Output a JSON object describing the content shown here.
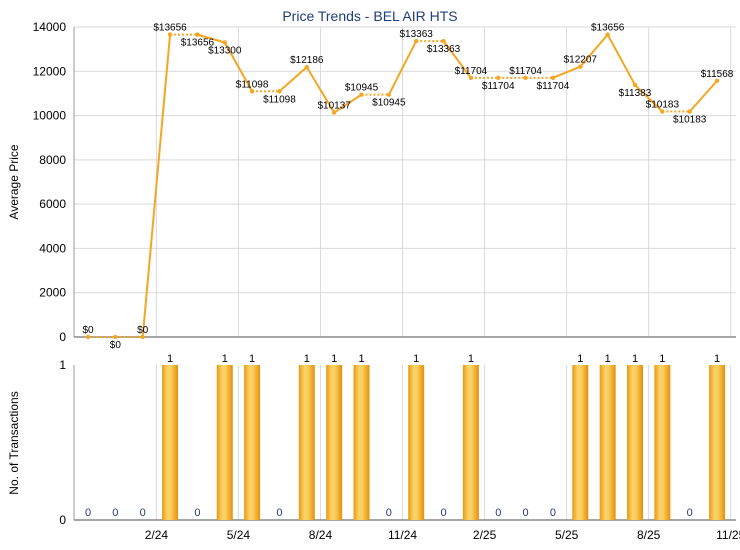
{
  "chart_data": [
    {
      "type": "line",
      "title": "Price Trends - BEL AIR HTS",
      "ylabel": "Average Price",
      "ylim": [
        0,
        14000
      ],
      "yticks": [
        "0",
        "2000",
        "4000",
        "6000",
        "8000",
        "10000",
        "12000",
        "14000"
      ],
      "grid": true,
      "color": "#f5a623",
      "points": [
        {
          "y": 0,
          "label": "$0",
          "pos": "above"
        },
        {
          "y": 0,
          "label": "$0",
          "pos": "below"
        },
        {
          "y": 0,
          "label": "$0",
          "pos": "above"
        },
        {
          "y": 13656,
          "label": "$13656",
          "pos": "above"
        },
        {
          "y": 13656,
          "label": "$13656",
          "pos": "below"
        },
        {
          "y": 13300,
          "label": "$13300",
          "pos": "below"
        },
        {
          "y": 11098,
          "label": "$11098",
          "pos": "above"
        },
        {
          "y": 11098,
          "label": "$11098",
          "pos": "below"
        },
        {
          "y": 12186,
          "label": "$12186",
          "pos": "above"
        },
        {
          "y": 10137,
          "label": "$10137",
          "pos": "above"
        },
        {
          "y": 10945,
          "label": "$10945",
          "pos": "above"
        },
        {
          "y": 10945,
          "label": "$10945",
          "pos": "below"
        },
        {
          "y": 13363,
          "label": "$13363",
          "pos": "above"
        },
        {
          "y": 13363,
          "label": "$13363",
          "pos": "below"
        },
        {
          "y": 11704,
          "label": "$11704",
          "pos": "above"
        },
        {
          "y": 11704,
          "label": "$11704",
          "pos": "below"
        },
        {
          "y": 11704,
          "label": "$11704",
          "pos": "above"
        },
        {
          "y": 11704,
          "label": "$11704",
          "pos": "below"
        },
        {
          "y": 12207,
          "label": "$12207",
          "pos": "above"
        },
        {
          "y": 13656,
          "label": "$13656",
          "pos": "above"
        },
        {
          "y": 11383,
          "label": "$11383",
          "pos": "below"
        },
        {
          "y": 10183,
          "label": "$10183",
          "pos": "above"
        },
        {
          "y": 10183,
          "label": "$10183",
          "pos": "below"
        },
        {
          "y": 11568,
          "label": "$11568",
          "pos": "above"
        }
      ]
    },
    {
      "type": "bar",
      "ylabel": "No. of Transactions",
      "ylim": [
        0,
        1
      ],
      "yticks": [
        "0",
        "1"
      ],
      "color": "#f5a623",
      "values": [
        0,
        0,
        0,
        1,
        0,
        1,
        1,
        0,
        1,
        1,
        1,
        0,
        1,
        0,
        1,
        0,
        0,
        0,
        1,
        1,
        1,
        1,
        0,
        1
      ],
      "xticks": [
        {
          "index": 2.5,
          "label": "2/24"
        },
        {
          "index": 5.5,
          "label": "5/24"
        },
        {
          "index": 8.5,
          "label": "8/24"
        },
        {
          "index": 11.5,
          "label": "11/24"
        },
        {
          "index": 14.5,
          "label": "2/25"
        },
        {
          "index": 17.5,
          "label": "5/25"
        },
        {
          "index": 20.5,
          "label": "8/25"
        },
        {
          "index": 23.5,
          "label": "11/25"
        }
      ]
    }
  ]
}
